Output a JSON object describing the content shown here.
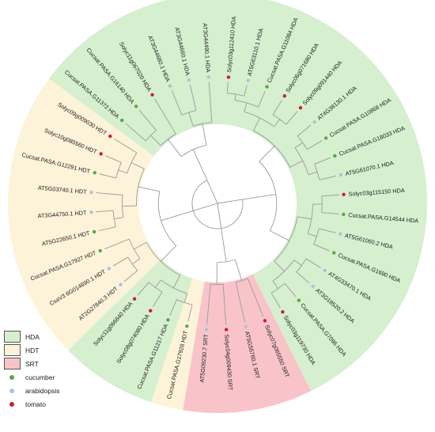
{
  "colors": {
    "HDA": "#d6efcf",
    "HDT": "#fcf3d9",
    "SRT": "#f8c4ca",
    "cucumber": "#57a84a",
    "arabidopsis": "#aac4dd",
    "tomato": "#cc1f2f",
    "branch": "#9a9a9a"
  },
  "legend": {
    "groups": [
      {
        "label": "HDA",
        "color_key": "HDA"
      },
      {
        "label": "HDT",
        "color_key": "HDT"
      },
      {
        "label": "SRT",
        "color_key": "SRT"
      }
    ],
    "species": [
      {
        "label": "cucumber",
        "color_key": "cucumber"
      },
      {
        "label": "arabidopsis",
        "color_key": "arabidopsis"
      },
      {
        "label": "tomato",
        "color_key": "tomato"
      }
    ]
  },
  "leaves": [
    {
      "name": "Solyc03g112410 HDA",
      "species": "tomato",
      "group": "HDA"
    },
    {
      "name": "AT5G63110.1 HDA",
      "species": "arabidopsis",
      "group": "HDA"
    },
    {
      "name": "Cucsat.PASA.G11084 HDA",
      "species": "cucumber",
      "group": "HDA"
    },
    {
      "name": "Solyc06g071680 HDA",
      "species": "tomato",
      "group": "HDA"
    },
    {
      "name": "Solyc09g091440 HDA",
      "species": "tomato",
      "group": "HDA"
    },
    {
      "name": "AT4G38130.1 HDA",
      "species": "arabidopsis",
      "group": "HDA"
    },
    {
      "name": "Cucsat.PASA.G10868 HDA",
      "species": "cucumber",
      "group": "HDA"
    },
    {
      "name": "Cucsat.PASA.G18033 HDA",
      "species": "cucumber",
      "group": "HDA"
    },
    {
      "name": "AT5G61070.1 HDA",
      "species": "arabidopsis",
      "group": "HDA"
    },
    {
      "name": "Solyc03g115150 HDA",
      "species": "tomato",
      "group": "HDA"
    },
    {
      "name": "Cucsat.PASA.G14544 HDA",
      "species": "cucumber",
      "group": "HDA"
    },
    {
      "name": "AT5G61060.2 HDA",
      "species": "arabidopsis",
      "group": "HDA"
    },
    {
      "name": "Cucsat.PASA.G1690 HDA",
      "species": "cucumber",
      "group": "HDA"
    },
    {
      "name": "AT4G33470.1 HDA",
      "species": "arabidopsis",
      "group": "HDA"
    },
    {
      "name": "AT3G18520.2 HDA",
      "species": "arabidopsis",
      "group": "HDA"
    },
    {
      "name": "Cucsat.PASA.G7096 HDA",
      "species": "cucumber",
      "group": "HDA"
    },
    {
      "name": "Solyc03g119730 HDA",
      "species": "tomato",
      "group": "HDA"
    },
    {
      "name": "Solyc07g065550 SRT",
      "species": "tomato",
      "group": "SRT"
    },
    {
      "name": "AT5G55760.1 SRT",
      "species": "arabidopsis",
      "group": "SRT"
    },
    {
      "name": "Solyc04g009430 SRT",
      "species": "tomato",
      "group": "SRT"
    },
    {
      "name": "AT5G09230.7 SRT",
      "species": "arabidopsis",
      "group": "SRT"
    },
    {
      "name": "Cucsat.PASA.G17928 HDT",
      "species": "cucumber",
      "group": "HDT"
    },
    {
      "name": "Cucsat.PASA.G11217 HDA",
      "species": "cucumber",
      "group": "HDA"
    },
    {
      "name": "Solyc08g074080 HDA",
      "species": "tomato",
      "group": "HDA"
    },
    {
      "name": "Solyc11g066840 HDA",
      "species": "tomato",
      "group": "HDA"
    },
    {
      "name": "AT2G27840.3 HDT",
      "species": "arabidopsis",
      "group": "HDT"
    },
    {
      "name": "CsaV3 6G014690.1 HDT",
      "species": "arabidopsis",
      "group": "HDT"
    },
    {
      "name": "Cucsat.PASA.G17927 HDT",
      "species": "cucumber",
      "group": "HDT"
    },
    {
      "name": "AT5G22650.1 HDT",
      "species": "cucumber",
      "group": "HDT"
    },
    {
      "name": "AT3G44750.1 HDT",
      "species": "arabidopsis",
      "group": "HDT"
    },
    {
      "name": "AT5G03740.1 HDT",
      "species": "arabidopsis",
      "group": "HDT"
    },
    {
      "name": "Cucsat.PASA.G12291 HDT",
      "species": "cucumber",
      "group": "HDT"
    },
    {
      "name": "Solyc10g085560 HDT",
      "species": "tomato",
      "group": "HDT"
    },
    {
      "name": "Solyc09g009030 HDT",
      "species": "tomato",
      "group": "HDT"
    },
    {
      "name": "Cucsat.PASA.G11372 HDA",
      "species": "cucumber",
      "group": "HDA"
    },
    {
      "name": "Cucsat.PASA.G16140 HDA",
      "species": "cucumber",
      "group": "HDA"
    },
    {
      "name": "Solyc11g067020 HDA",
      "species": "tomato",
      "group": "HDA"
    },
    {
      "name": "AT3G44680.1 HDA",
      "species": "arabidopsis",
      "group": "HDA"
    },
    {
      "name": "AT3G44660.1 HDA",
      "species": "arabidopsis",
      "group": "HDA"
    },
    {
      "name": "AT3G44490.1 HDA",
      "species": "arabidopsis",
      "group": "HDA"
    }
  ]
}
